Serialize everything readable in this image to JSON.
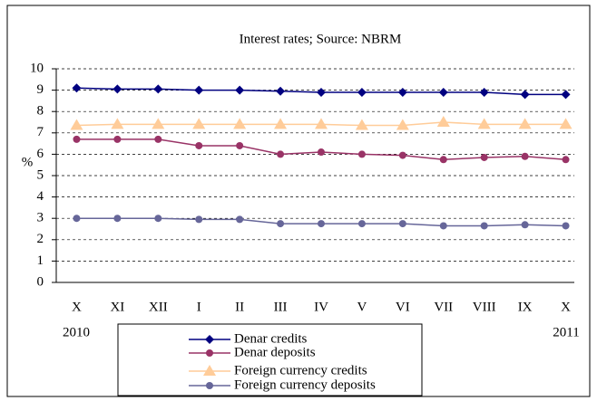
{
  "chart_data": {
    "type": "line",
    "title": "Interest rates; Source: NBRM",
    "y_label": "%",
    "categories": [
      "X",
      "XI",
      "XII",
      "I",
      "II",
      "III",
      "IV",
      "V",
      "VI",
      "VII",
      "VIII",
      "IX",
      "X"
    ],
    "year_labels": [
      "2010",
      "2011"
    ],
    "series": [
      {
        "name": "Denar credits",
        "color": "#000080",
        "marker": "diamond",
        "values": [
          9.1,
          9.05,
          9.05,
          9.0,
          9.0,
          8.95,
          8.9,
          8.9,
          8.9,
          8.9,
          8.9,
          8.8,
          8.8
        ]
      },
      {
        "name": "Denar deposits",
        "color": "#993366",
        "marker": "circle",
        "values": [
          6.7,
          6.7,
          6.7,
          6.4,
          6.4,
          6.0,
          6.1,
          6.0,
          5.95,
          5.75,
          5.85,
          5.9,
          5.75
        ]
      },
      {
        "name": "Foreign currency credits",
        "color": "#ffcc99",
        "marker": "triangle",
        "values": [
          7.35,
          7.4,
          7.4,
          7.4,
          7.4,
          7.4,
          7.4,
          7.35,
          7.35,
          7.5,
          7.4,
          7.4,
          7.4
        ]
      },
      {
        "name": "Foreign currency deposits",
        "color": "#666699",
        "marker": "circle",
        "values": [
          3.0,
          3.0,
          3.0,
          2.95,
          2.95,
          2.75,
          2.75,
          2.75,
          2.75,
          2.65,
          2.65,
          2.7,
          2.65
        ]
      }
    ],
    "ylim": [
      0,
      10
    ],
    "yticks": [
      0,
      1,
      2,
      3,
      4,
      5,
      6,
      7,
      8,
      9,
      10
    ],
    "grid": true
  }
}
